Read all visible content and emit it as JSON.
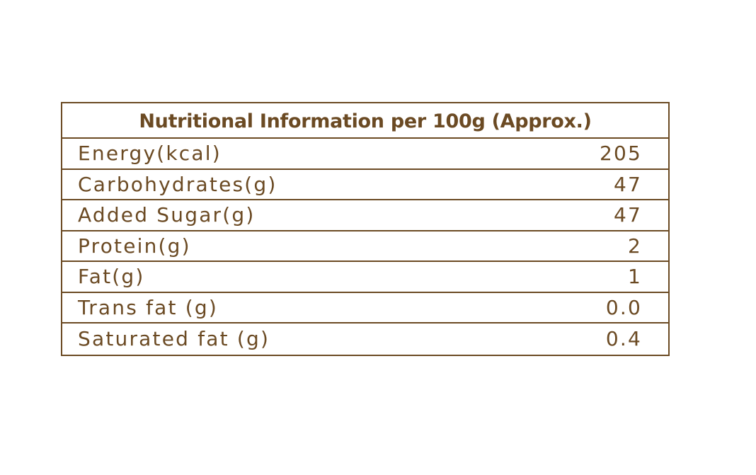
{
  "table": {
    "title": "Nutritional Information per 100g (Approx.)",
    "rows": [
      {
        "label": "Energy(kcal)",
        "value": "205"
      },
      {
        "label": "Carbohydrates(g)",
        "value": "47"
      },
      {
        "label": "Added Sugar(g)",
        "value": "47"
      },
      {
        "label": "Protein(g)",
        "value": "2"
      },
      {
        "label": "Fat(g)",
        "value": "1"
      },
      {
        "label": "Trans fat (g)",
        "value": "0.0"
      },
      {
        "label": "Saturated fat (g)",
        "value": "0.4"
      }
    ]
  },
  "colors": {
    "text": "#6b4a23",
    "border": "#6b4a23",
    "background": "#ffffff"
  }
}
